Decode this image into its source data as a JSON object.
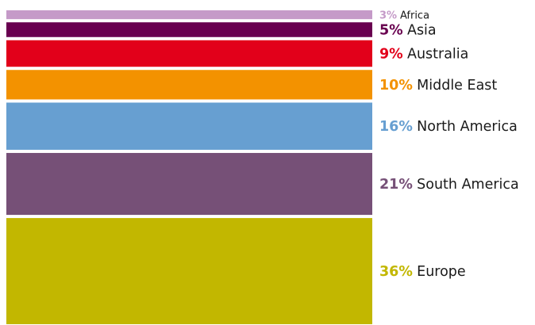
{
  "chart_data": {
    "type": "stacked_column",
    "categories": [
      "Africa",
      "Asia",
      "Australia",
      "Middle East",
      "North America",
      "South America",
      "Europe"
    ],
    "values": [
      3,
      5,
      9,
      10,
      16,
      21,
      36
    ],
    "value_labels": [
      "3%",
      "5%",
      "9%",
      "10%",
      "16%",
      "21%",
      "36%"
    ],
    "colors": [
      "#c59ac8",
      "#690050",
      "#e2001a",
      "#f39200",
      "#679fd1",
      "#765077",
      "#c2b700"
    ]
  }
}
